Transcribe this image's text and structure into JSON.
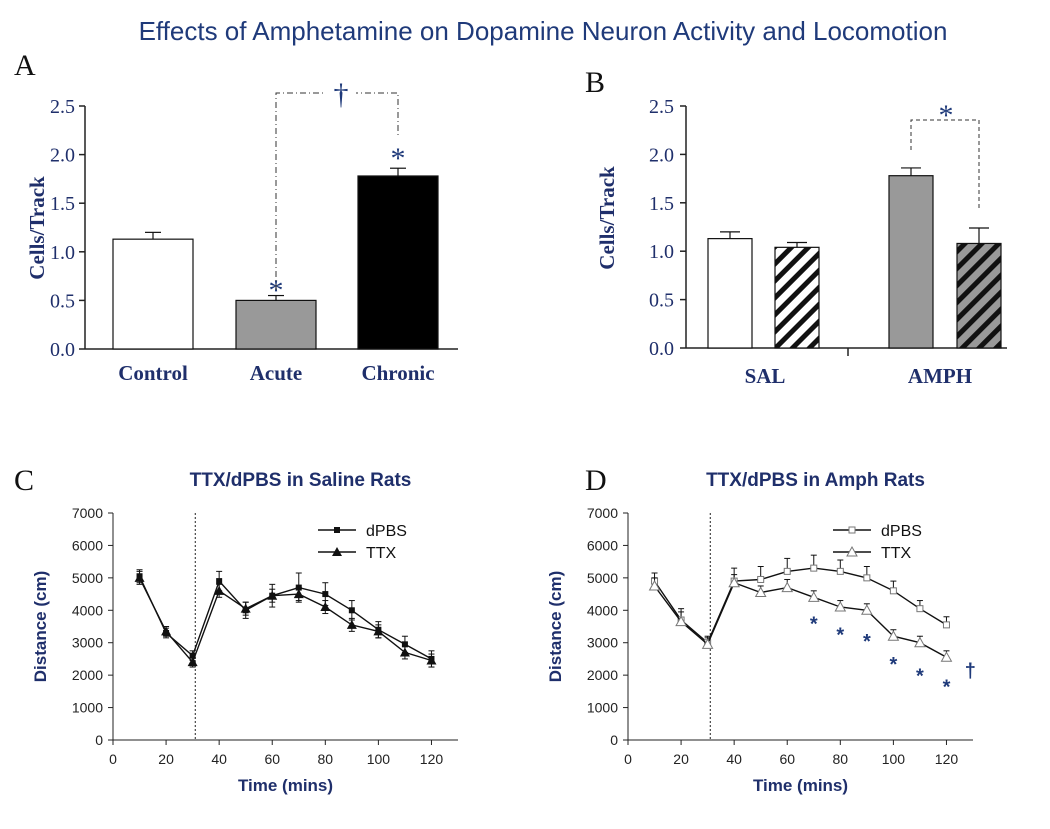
{
  "figure": {
    "title": "Effects of Amphetamine on Dopamine Neuron Activity and Locomotion",
    "colors": {
      "navy": "#1f2f6b",
      "grey_bar": "#999999",
      "black_bar": "#000000",
      "white_bar": "#ffffff"
    }
  },
  "chart_data": [
    {
      "panel": "A",
      "type": "bar",
      "ylabel": "Cells/Track",
      "ylim": [
        0,
        2.5
      ],
      "yticks": [
        "0.0",
        "0.5",
        "1.0",
        "1.5",
        "2.0",
        "2.5"
      ],
      "categories": [
        "Control",
        "Acute",
        "Chronic"
      ],
      "values": [
        1.13,
        0.5,
        1.78
      ],
      "errors": [
        0.07,
        0.05,
        0.08
      ],
      "bar_colors": [
        "#ffffff",
        "#999999",
        "#000000"
      ],
      "annotations": {
        "star_marks": [
          "*",
          "*"
        ],
        "dagger": "†"
      }
    },
    {
      "panel": "B",
      "type": "bar",
      "ylabel": "Cells/Track",
      "ylim": [
        0,
        2.5
      ],
      "yticks": [
        "0.0",
        "0.5",
        "1.0",
        "1.5",
        "2.0",
        "2.5"
      ],
      "categories": [
        "SAL",
        "AMPH"
      ],
      "series": [
        {
          "values": [
            1.13,
            1.78
          ],
          "errors": [
            0.07,
            0.08
          ],
          "fill": "solid"
        },
        {
          "values": [
            1.04,
            1.08
          ],
          "errors": [
            0.05,
            0.16
          ],
          "fill": "hatched"
        }
      ],
      "annotations": {
        "star": "*"
      }
    },
    {
      "panel": "C",
      "type": "line",
      "title": "TTX/dPBS in Saline Rats",
      "xlabel": "Time (mins)",
      "ylabel": "Distance (cm)",
      "xlim": [
        0,
        130
      ],
      "ylim": [
        0,
        7000
      ],
      "xticks": [
        "0",
        "20",
        "40",
        "60",
        "80",
        "100",
        "120"
      ],
      "yticks": [
        "0",
        "1000",
        "2000",
        "3000",
        "4000",
        "5000",
        "6000",
        "7000"
      ],
      "x": [
        10,
        20,
        30,
        40,
        50,
        60,
        70,
        80,
        90,
        100,
        110,
        120
      ],
      "vline_x": 31,
      "series": [
        {
          "name": "dPBS",
          "marker": "square",
          "values": [
            5050,
            3300,
            2600,
            4900,
            4000,
            4450,
            4700,
            4500,
            4000,
            3400,
            2950,
            2500
          ],
          "errors": [
            200,
            150,
            150,
            300,
            250,
            350,
            450,
            350,
            300,
            250,
            250,
            250
          ]
        },
        {
          "name": "TTX",
          "marker": "triangle",
          "values": [
            5000,
            3350,
            2400,
            4600,
            4050,
            4450,
            4500,
            4100,
            3550,
            3350,
            2700,
            2450
          ],
          "errors": [
            200,
            150,
            150,
            200,
            200,
            200,
            200,
            200,
            200,
            200,
            200,
            200
          ]
        }
      ]
    },
    {
      "panel": "D",
      "type": "line",
      "title": "TTX/dPBS in Amph Rats",
      "xlabel": "Time (mins)",
      "ylabel": "Distance (cm)",
      "xlim": [
        0,
        130
      ],
      "ylim": [
        0,
        7000
      ],
      "xticks": [
        "0",
        "20",
        "40",
        "60",
        "80",
        "100",
        "120"
      ],
      "yticks": [
        "0",
        "1000",
        "2000",
        "3000",
        "4000",
        "5000",
        "6000",
        "7000"
      ],
      "x": [
        10,
        20,
        30,
        40,
        50,
        60,
        70,
        80,
        90,
        100,
        110,
        120
      ],
      "vline_x": 31,
      "series": [
        {
          "name": "dPBS",
          "marker": "open-square",
          "values": [
            4900,
            3700,
            3000,
            4900,
            4950,
            5200,
            5300,
            5200,
            5000,
            4600,
            4050,
            3550
          ],
          "errors": [
            250,
            350,
            200,
            400,
            400,
            400,
            400,
            350,
            350,
            300,
            250,
            250
          ]
        },
        {
          "name": "TTX",
          "marker": "open-triangle",
          "values": [
            4750,
            3650,
            2950,
            4850,
            4550,
            4700,
            4400,
            4100,
            4000,
            3200,
            3000,
            2550
          ],
          "errors": [
            250,
            300,
            200,
            250,
            200,
            250,
            200,
            200,
            200,
            200,
            200,
            200
          ]
        }
      ],
      "annotations": {
        "star": "*",
        "star_x": [
          70,
          80,
          90,
          100,
          110,
          120
        ],
        "star_y": [
          3750,
          3400,
          3200,
          2500,
          2150,
          1800
        ],
        "dagger": "†"
      }
    }
  ]
}
